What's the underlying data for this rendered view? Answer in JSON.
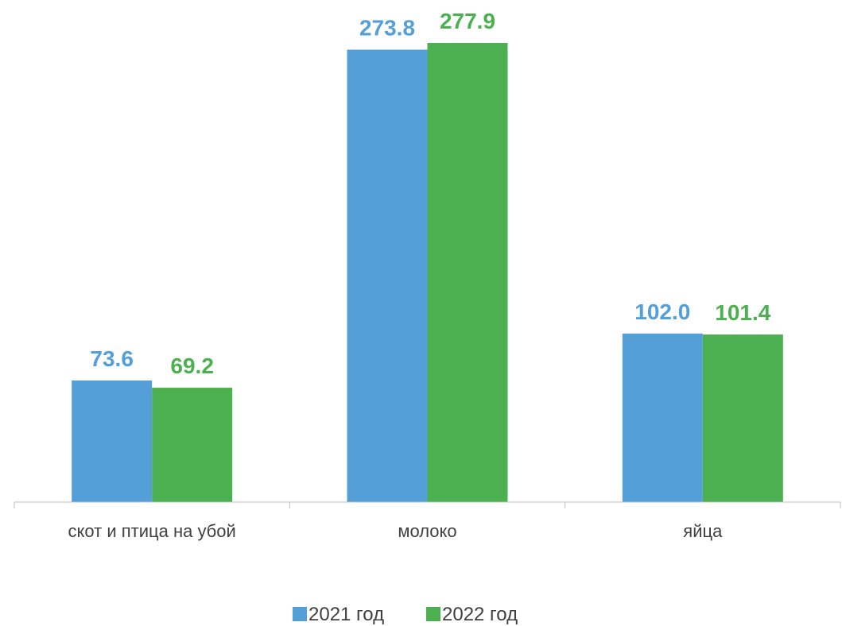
{
  "chart_data": {
    "type": "bar",
    "categories": [
      "скот и птица на убой",
      "молоко",
      "яйца"
    ],
    "series": [
      {
        "name": "2021 год",
        "values": [
          73.6,
          273.8,
          102.0
        ],
        "color": "#549FD8"
      },
      {
        "name": "2022 год",
        "values": [
          69.2,
          277.9,
          101.4
        ],
        "color": "#4CAF50"
      }
    ],
    "value_labels": [
      [
        "73.6",
        "273.8",
        "102.0"
      ],
      [
        "69.2",
        "277.9",
        "101.4"
      ]
    ],
    "title": "",
    "xlabel": "",
    "ylabel": "",
    "ylim": [
      0,
      300
    ],
    "grid": false,
    "legend": "bottom"
  }
}
